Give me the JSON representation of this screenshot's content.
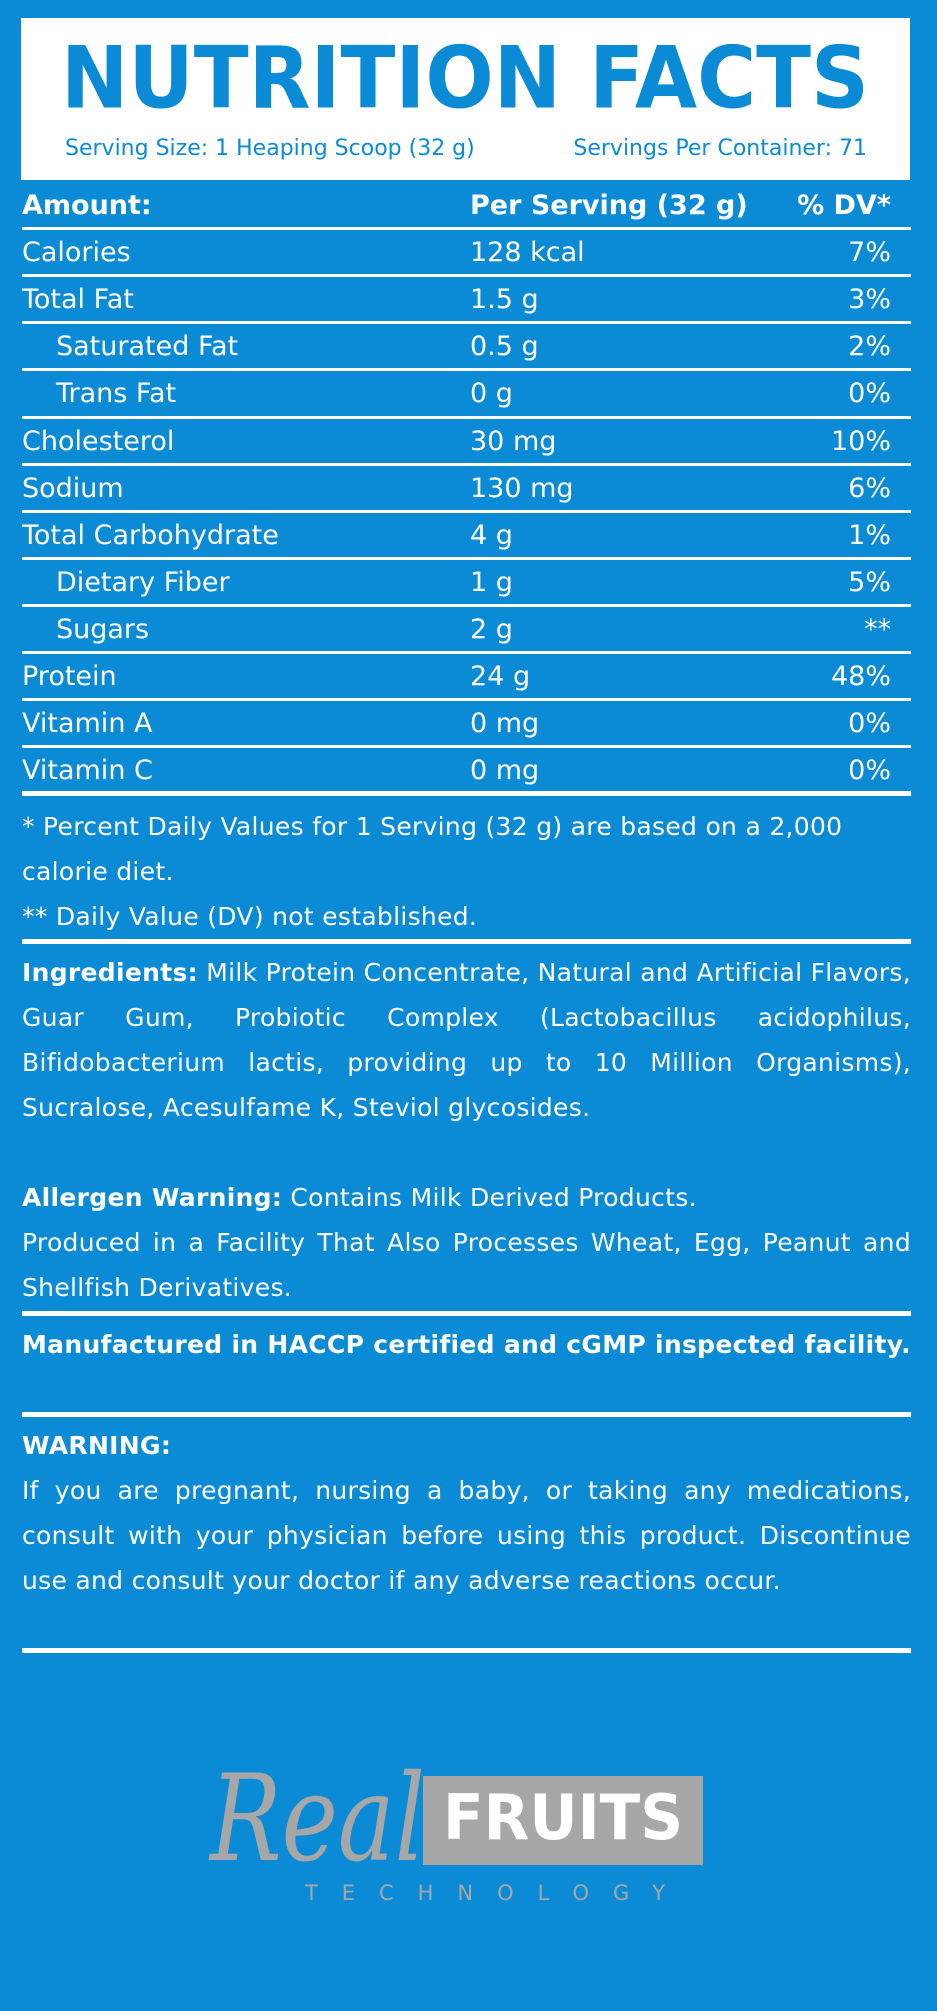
{
  "header": {
    "title": "NUTRITION FACTS",
    "serving_size": "Serving Size: 1 Heaping Scoop (32 g)",
    "servings_per_container": "Servings Per Container: 71"
  },
  "table": {
    "header": [
      "Amount:",
      "Per Serving (32 g)",
      "% DV*"
    ],
    "rows": [
      [
        "Calories",
        "128 kcal",
        "7%"
      ],
      [
        "Total Fat",
        "1.5 g",
        "3%"
      ],
      [
        "Saturated Fat",
        "0.5 g",
        "2%"
      ],
      [
        "Trans Fat",
        "0 g",
        "0%"
      ],
      [
        "Cholesterol",
        "30 mg",
        "10%"
      ],
      [
        "Sodium",
        "130 mg",
        "6%"
      ],
      [
        "Total Carbohydrate",
        "4 g",
        "1%"
      ],
      [
        "Dietary Fiber",
        "1 g",
        "5%"
      ],
      [
        "Sugars",
        "2 g",
        "**"
      ],
      [
        "Protein",
        "24 g",
        "48%"
      ],
      [
        "Vitamin A",
        "0 mg",
        "0%"
      ],
      [
        "Vitamin C",
        "0 mg",
        "0%"
      ]
    ]
  },
  "footnotes": [
    "* Percent Daily Values for 1 Serving (32 g) are based on a 2,000 calorie diet.",
    "** Daily Value (DV) not established."
  ],
  "ingredients": {
    "label": "Ingredients:",
    "text": "Milk Protein Concentrate, Natural and Artificial Flavors, Guar Gum, Probiotic Complex (Lactobacillus acidophilus, Bifidobacterium lactis, providing up to 10 Million Organisms), Sucralose, Acesulfame K, Steviol glycosides."
  },
  "allergen": {
    "label": "Allergen Warning:",
    "text": "Contains Milk Derived Products.",
    "facility": "Produced in a Facility That Also Processes Wheat, Egg, Peanut and Shellfish Derivatives."
  },
  "manufactured": "Manufactured in HACCP certified and cGMP inspected facility.",
  "warning": {
    "label": "WARNING:",
    "text": "If you are pregnant, nursing a baby, or taking any medications, consult with your physician before using this product. Discontinue use and consult your doctor if any adverse reactions occur."
  },
  "logo": {
    "script": "Real",
    "brand": "FRUITS",
    "tagline": "TECHNOLOGY"
  }
}
